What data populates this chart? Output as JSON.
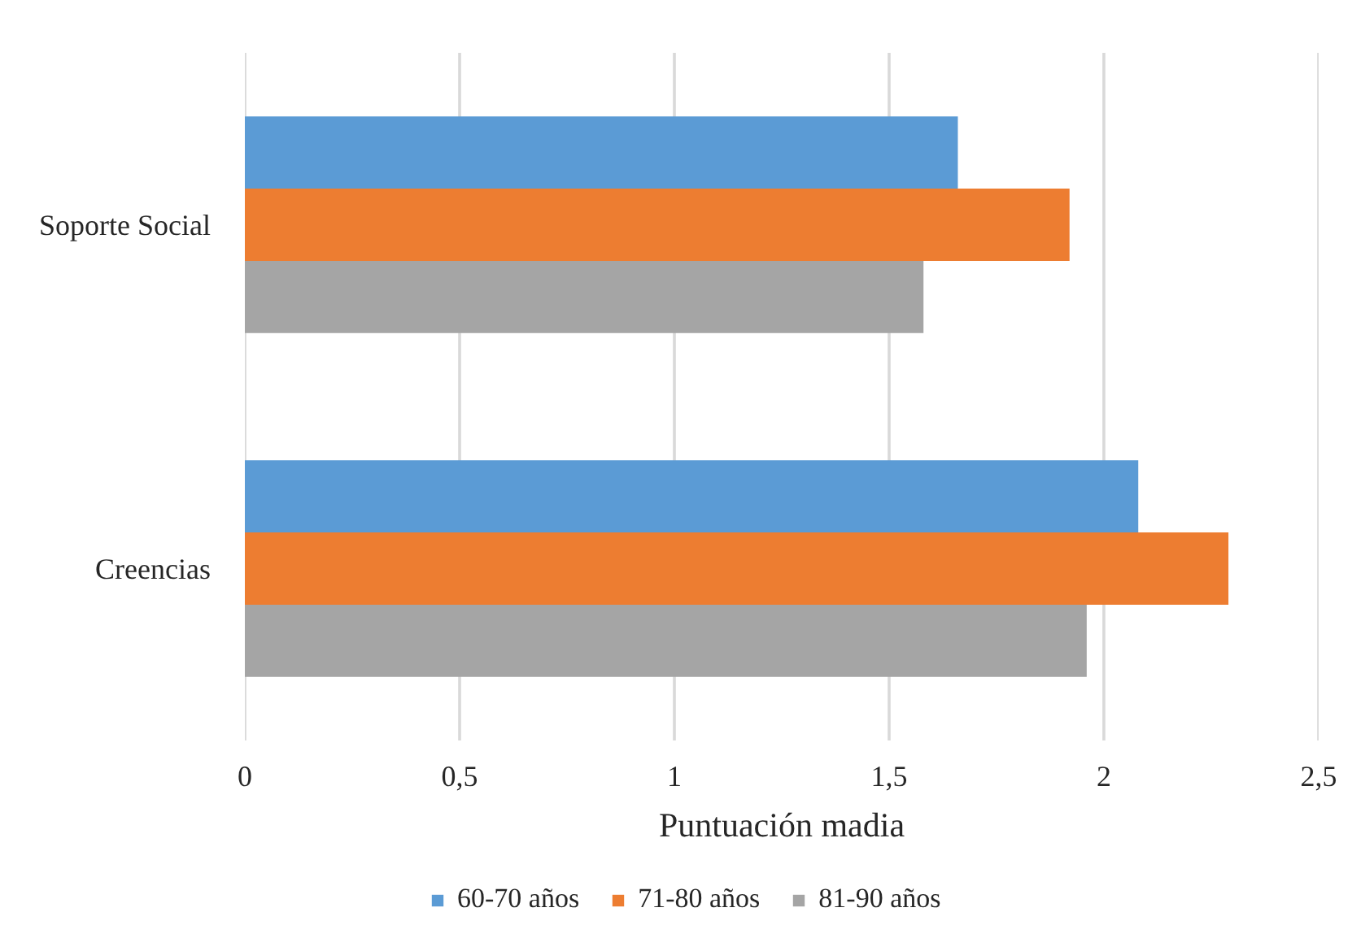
{
  "chart_data": {
    "type": "bar",
    "orientation": "horizontal",
    "categories": [
      "Soporte Social",
      "Creencias"
    ],
    "series": [
      {
        "name": "60-70 años",
        "color": "#5b9bd5",
        "values": [
          1.66,
          2.08
        ]
      },
      {
        "name": "71-80 años",
        "color": "#ed7d31",
        "values": [
          1.92,
          2.29
        ]
      },
      {
        "name": "81-90 años",
        "color": "#a5a5a5",
        "values": [
          1.58,
          1.96
        ]
      }
    ],
    "xlim": [
      0,
      2.5
    ],
    "xticks": [
      0,
      {
        "value": 0.5,
        "label": "0,5"
      },
      1,
      {
        "value": 1.5,
        "label": "1,5"
      },
      2,
      {
        "value": 2.5,
        "label": "2,5"
      }
    ],
    "xlabel": "Puntuación madia",
    "grid": "x",
    "legend": "bottom"
  }
}
